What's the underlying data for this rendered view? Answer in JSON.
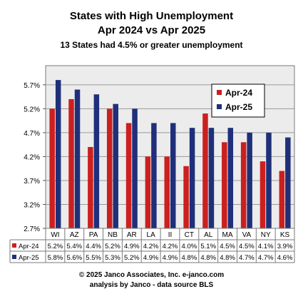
{
  "header": {
    "title": "States with High Unemployment",
    "subtitle": "Apr 2024 vs Apr 2025",
    "note": "13  States had 4.5% or greater unemployment"
  },
  "footer": {
    "line1": "© 2025 Janco Associates, Inc. e-janco.com",
    "line2": "analysis by Janco - data source BLS"
  },
  "chart_data": {
    "type": "bar",
    "categories": [
      "WI",
      "AZ",
      "PA",
      "NB",
      "AR",
      "LA",
      "II",
      "CT",
      "AL",
      "MA",
      "VA",
      "NY",
      "KS"
    ],
    "series": [
      {
        "name": "Apr-24",
        "color": "#cc1f1f",
        "values": [
          5.2,
          5.4,
          4.4,
          5.2,
          4.9,
          4.2,
          4.2,
          4.0,
          5.1,
          4.5,
          4.5,
          4.1,
          3.9
        ]
      },
      {
        "name": "Apr-25",
        "color": "#1f2f7a",
        "values": [
          5.8,
          5.6,
          5.5,
          5.3,
          5.2,
          4.9,
          4.9,
          4.8,
          4.8,
          4.8,
          4.7,
          4.7,
          4.6
        ]
      }
    ],
    "table_labels": [
      [
        "5.2%",
        "5.4%",
        "4.4%",
        "5.2%",
        "4.9%",
        "4.2%",
        "4.2%",
        "4.0%",
        "5.1%",
        "4.5%",
        "4.5%",
        "4.1%",
        "3.9%"
      ],
      [
        "5.8%",
        "5.6%",
        "5.5%",
        "5.3%",
        "5.2%",
        "4.9%",
        "4.9%",
        "4.8%",
        "4.8%",
        "4.8%",
        "4.7%",
        "4.7%",
        "4.6%"
      ]
    ],
    "y_ticks": [
      "2.7%",
      "3.2%",
      "3.7%",
      "4.2%",
      "4.7%",
      "5.2%",
      "5.7%"
    ],
    "ylim": [
      2.7,
      6.1
    ],
    "legend_position": "upper-right",
    "grid": true,
    "data_table": true
  }
}
